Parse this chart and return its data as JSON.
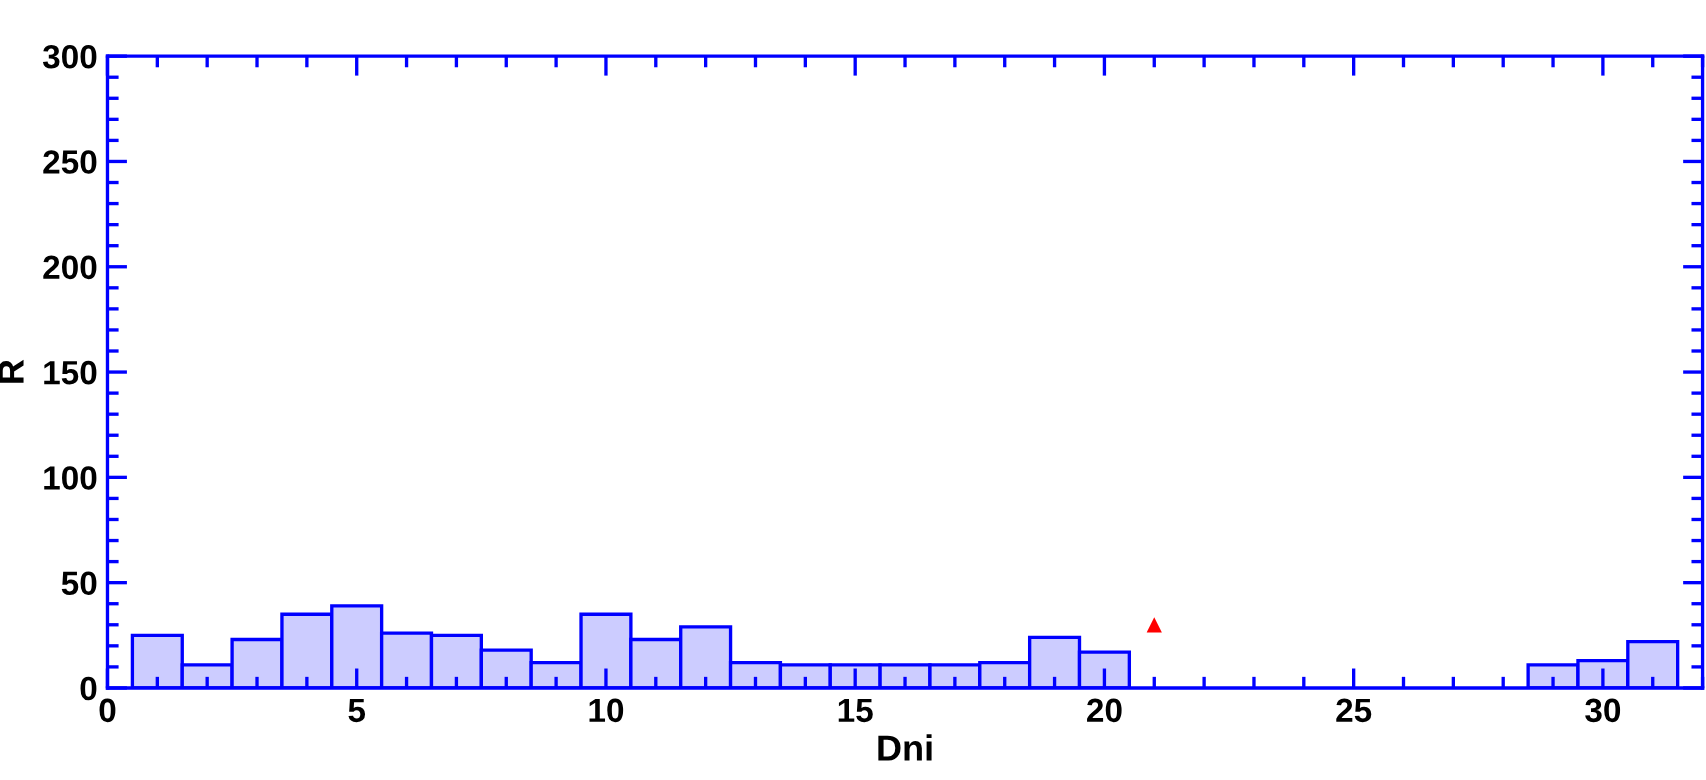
{
  "chart_data": {
    "type": "histogram",
    "xlabel": "Dni",
    "ylabel": "R",
    "bins": [
      0.5,
      1.5,
      2.5,
      3.5,
      4.5,
      5.5,
      6.5,
      7.5,
      8.5,
      9.5,
      10.5,
      11.5,
      12.5,
      13.5,
      14.5,
      15.5,
      16.5,
      17.5,
      18.5,
      19.5,
      20.5,
      21.5,
      22.5,
      23.5,
      24.5,
      25.5,
      26.5,
      27.5,
      28.5,
      29.5,
      30.5,
      31.5
    ],
    "values": [
      25,
      11,
      23,
      35,
      39,
      26,
      25,
      18,
      12,
      35,
      23,
      29,
      12,
      11,
      11,
      11,
      11,
      12,
      24,
      17,
      0,
      0,
      0,
      0,
      0,
      0,
      0,
      0,
      11,
      13,
      22
    ],
    "color": "#ccccff",
    "series": [
      {
        "type": "scatter",
        "x": [
          21
        ],
        "values": [
          30
        ],
        "color": "#ff0000",
        "marker": "triangle"
      }
    ],
    "xlim": [
      0,
      32
    ],
    "ylim": [
      0,
      300
    ],
    "xticks": [
      0,
      {
        "value": 1,
        "label": null
      },
      {
        "value": 2,
        "label": null
      },
      {
        "value": 3,
        "label": null
      },
      {
        "value": 4,
        "label": null
      },
      5,
      {
        "value": 6,
        "label": null
      },
      {
        "value": 7,
        "label": null
      },
      {
        "value": 8,
        "label": null
      },
      {
        "value": 9,
        "label": null
      },
      10,
      {
        "value": 11,
        "label": null
      },
      {
        "value": 12,
        "label": null
      },
      {
        "value": 13,
        "label": null
      },
      {
        "value": 14,
        "label": null
      },
      15,
      {
        "value": 16,
        "label": null
      },
      {
        "value": 17,
        "label": null
      },
      {
        "value": 18,
        "label": null
      },
      {
        "value": 19,
        "label": null
      },
      20,
      {
        "value": 21,
        "label": null
      },
      {
        "value": 22,
        "label": null
      },
      {
        "value": 23,
        "label": null
      },
      {
        "value": 24,
        "label": null
      },
      25,
      {
        "value": 26,
        "label": null
      },
      {
        "value": 27,
        "label": null
      },
      {
        "value": 28,
        "label": null
      },
      {
        "value": 29,
        "label": null
      },
      30,
      {
        "value": 31,
        "label": null
      },
      {
        "value": 32,
        "label": null
      }
    ],
    "yticks": [
      0,
      {
        "value": 10,
        "label": null
      },
      {
        "value": 20,
        "label": null
      },
      {
        "value": 30,
        "label": null
      },
      {
        "value": 40,
        "label": null
      },
      50,
      {
        "value": 60,
        "label": null
      },
      {
        "value": 70,
        "label": null
      },
      {
        "value": 80,
        "label": null
      },
      {
        "value": 90,
        "label": null
      },
      100,
      {
        "value": 110,
        "label": null
      },
      {
        "value": 120,
        "label": null
      },
      {
        "value": 130,
        "label": null
      },
      {
        "value": 140,
        "label": null
      },
      150,
      {
        "value": 160,
        "label": null
      },
      {
        "value": 170,
        "label": null
      },
      {
        "value": 180,
        "label": null
      },
      {
        "value": 190,
        "label": null
      },
      200,
      {
        "value": 210,
        "label": null
      },
      {
        "value": 220,
        "label": null
      },
      {
        "value": 230,
        "label": null
      },
      {
        "value": 240,
        "label": null
      },
      250,
      {
        "value": 260,
        "label": null
      },
      {
        "value": 270,
        "label": null
      },
      {
        "value": 280,
        "label": null
      },
      {
        "value": 290,
        "label": null
      },
      300
    ],
    "grid": false,
    "legend": false
  }
}
